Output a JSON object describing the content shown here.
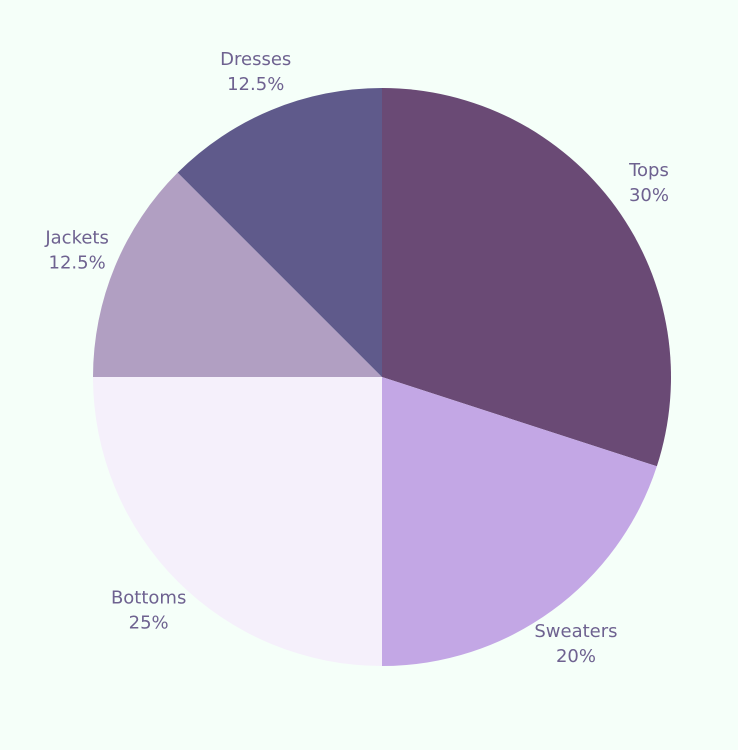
{
  "chart_data": {
    "type": "pie",
    "categories": [
      "Tops",
      "Sweaters",
      "Bottoms",
      "Jackets",
      "Dresses"
    ],
    "values": [
      30,
      20,
      25,
      12.5,
      12.5
    ],
    "value_labels": [
      "30%",
      "20%",
      "25%",
      "12.5%",
      "12.5%"
    ],
    "colors": [
      "#6a4a75",
      "#c3a7e5",
      "#f5f0fb",
      "#b19fc2",
      "#5f5a8b"
    ]
  }
}
